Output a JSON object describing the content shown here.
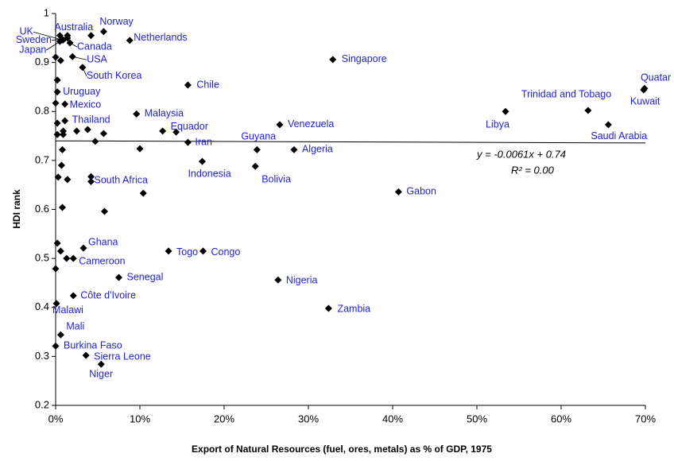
{
  "chart_data": {
    "type": "scatter",
    "x_label": "Export of Natural Resources (fuel, ores, metals) as % of GDP, 1975",
    "y_label": "HDI rank",
    "color": "#000000",
    "label_color": "#1f1fd6",
    "x": [
      5.7,
      4.2,
      8.8,
      0.8,
      1.4,
      0.5,
      1.7,
      2.0,
      3.2,
      32.9,
      15.7,
      69.9,
      69.8,
      0.2,
      1.1,
      1.1,
      9.6,
      53.4,
      63.2,
      65.6,
      26.6,
      12.7,
      15.7,
      23.9,
      28.3,
      17.4,
      23.7,
      4.2,
      40.7,
      3.3,
      13.4,
      17.5,
      2.1,
      7.5,
      26.4,
      2.1,
      32.4,
      0.1,
      0.6,
      0.0,
      3.6,
      5.4,
      0.5,
      0.9,
      1.4,
      0,
      0.6,
      0.2,
      0.9,
      0.2,
      0.9,
      2.5,
      3.8,
      5.7,
      4.7,
      0.8,
      10,
      0.7,
      0.3,
      1.4,
      4.2,
      10.4,
      5.8,
      0.8,
      0.2,
      0.6,
      1.3,
      0,
      14.3,
      0,
      0.2
    ],
    "values": [
      0.963,
      0.955,
      0.945,
      0.946,
      0.95,
      0.943,
      0.94,
      0.912,
      0.89,
      0.906,
      0.854,
      0.847,
      0.844,
      0.84,
      0.815,
      0.781,
      0.795,
      0.8,
      0.802,
      0.773,
      0.773,
      0.76,
      0.737,
      0.722,
      0.722,
      0.698,
      0.688,
      0.657,
      0.636,
      0.521,
      0.515,
      0.515,
      0.5,
      0.461,
      0.456,
      0.424,
      0.398,
      0.408,
      0.344,
      0.321,
      0.302,
      0.284,
      0.955,
      0.946,
      0.955,
      0.911,
      0.904,
      0.864,
      0.76,
      0.753,
      0.753,
      0.76,
      0.763,
      0.755,
      0.739,
      0.722,
      0.724,
      0.69,
      0.666,
      0.661,
      0.667,
      0.633,
      0.596,
      0.604,
      0.531,
      0.515,
      0.5,
      0.479,
      0.758,
      0.817,
      0.776
    ],
    "point_labels": [
      "Norway",
      "Australia",
      "Netherlands",
      "UK",
      "Sweden",
      "Japan",
      "Canada",
      "USA",
      "South Korea",
      "Singapore",
      "Chile",
      "Quatar",
      "Kuwait",
      "Uruguay",
      "Mexico",
      "Thailand",
      "Malaysia",
      "Libya",
      "Trinidad and Tobago",
      "Saudi Arabia",
      "Venezuela",
      "Equador",
      "Iran",
      "Guyana",
      "Algeria",
      "Indonesia",
      "Bolivia",
      "South Africa",
      "Gabon",
      "Ghana",
      "Togo",
      "Congo",
      "Cameroon",
      "Senegal",
      "Nigeria",
      "Côte d'Ivoire",
      "Zambia",
      "Malawi",
      "Mali",
      "Burkina Faso",
      "Sierra Leone",
      "Niger",
      null,
      null,
      null,
      null,
      null,
      null,
      null,
      null,
      null,
      null,
      null,
      null,
      null,
      null,
      null,
      null,
      null,
      null,
      null,
      null,
      null,
      null,
      null,
      null,
      null,
      null,
      null,
      null,
      null
    ],
    "trendline": {
      "x": [
        0,
        70
      ],
      "y": [
        0.74,
        0.7357
      ]
    },
    "annotations": [
      "y = -0.0061x + 0.74",
      "R² = 0.00"
    ],
    "xlim": [
      0,
      70
    ],
    "ylim": [
      0.2,
      1
    ],
    "xticks": [
      {
        "value": 0,
        "label": "0%"
      },
      {
        "value": 10,
        "label": "10%"
      },
      {
        "value": 20,
        "label": "20%"
      },
      {
        "value": 30,
        "label": "30%"
      },
      {
        "value": 40,
        "label": "40%"
      },
      {
        "value": 50,
        "label": "50%"
      },
      {
        "value": 60,
        "label": "60%"
      },
      {
        "value": 70,
        "label": "70%"
      }
    ],
    "yticks": [
      0.2,
      0.3,
      0.4,
      0.5,
      0.6,
      0.7,
      0.8,
      0.9,
      1
    ],
    "grid": false
  }
}
